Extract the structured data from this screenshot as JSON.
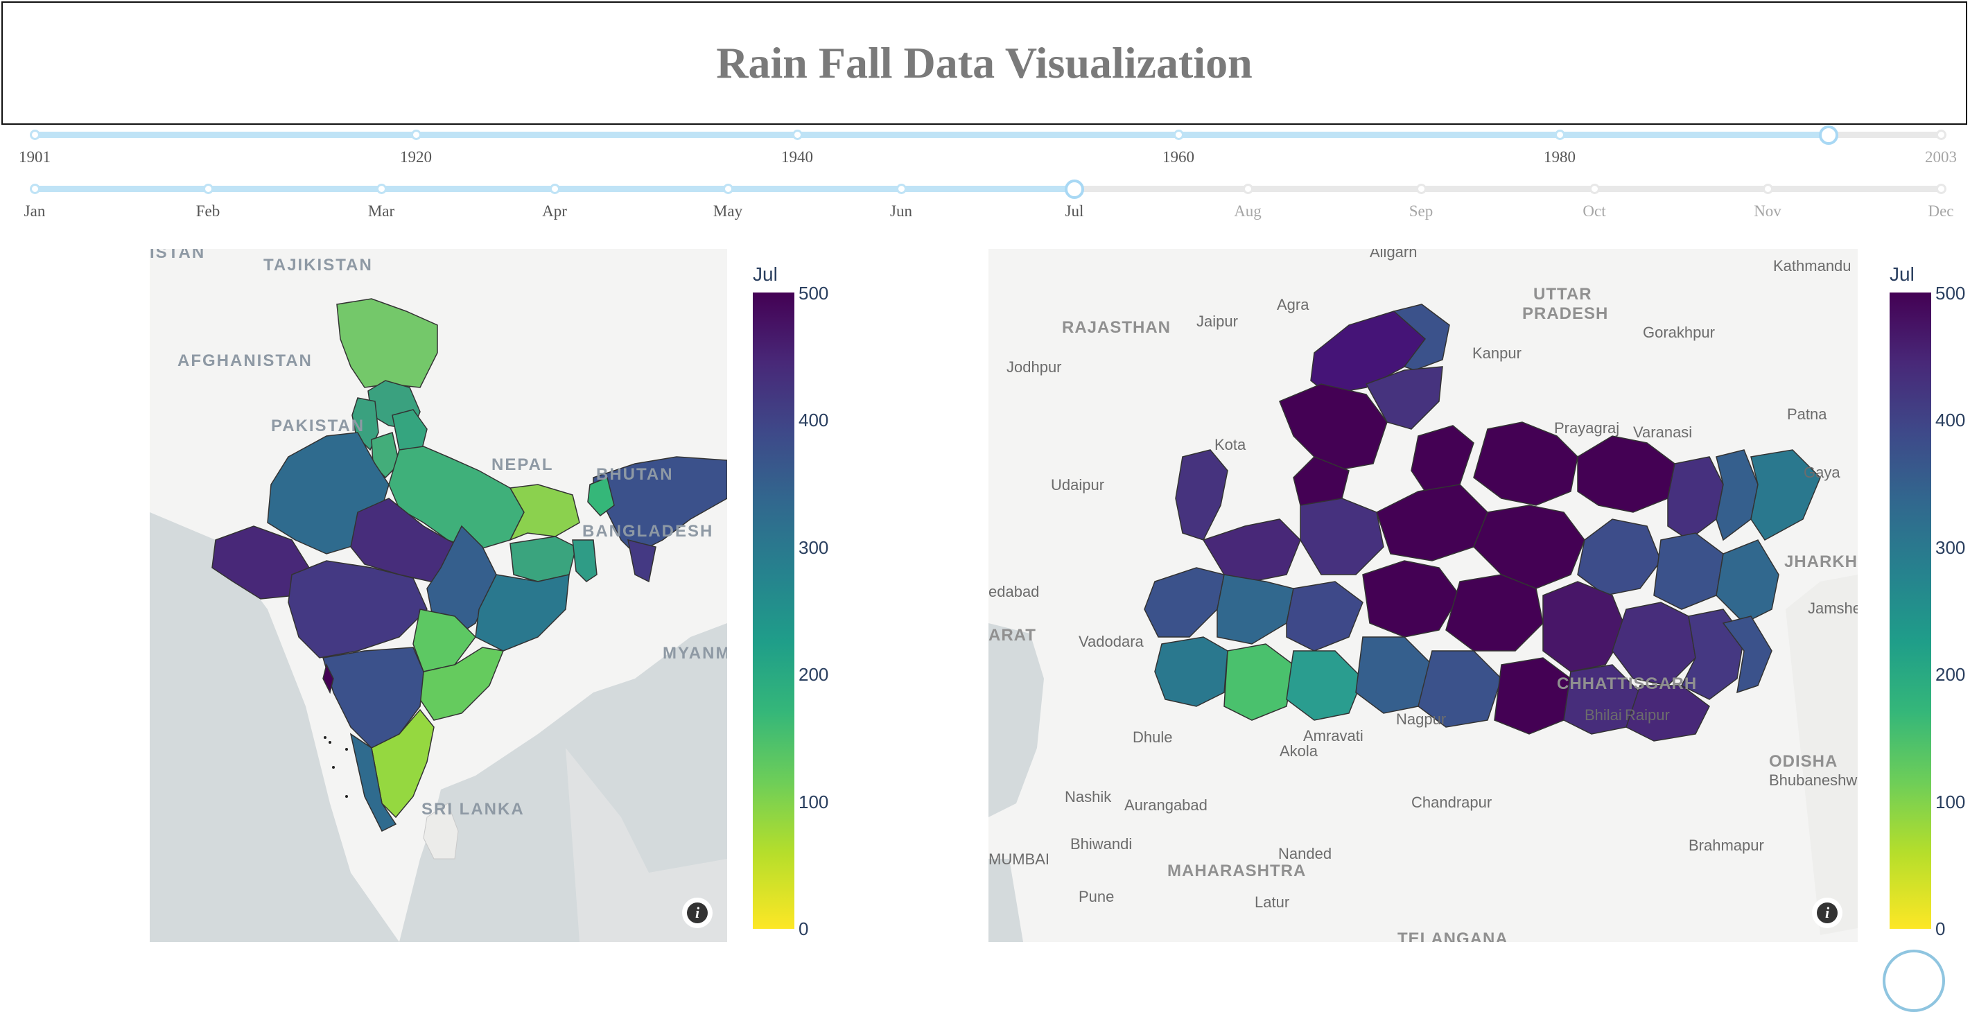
{
  "header": {
    "title": "Rain Fall Data Visualization"
  },
  "year_slider": {
    "labels": [
      "1901",
      "1920",
      "1940",
      "1960",
      "1980",
      "2003"
    ],
    "min": 1901,
    "max": 2003,
    "selected": 1997
  },
  "month_slider": {
    "labels": [
      "Jan",
      "Feb",
      "Mar",
      "Apr",
      "May",
      "Jun",
      "Jul",
      "Aug",
      "Sep",
      "Oct",
      "Nov",
      "Dec"
    ],
    "selected_index": 6
  },
  "colors": {
    "slider_accent": "#bfe3f6",
    "slider_rail": "#e8e8e8",
    "active_label": "#555555",
    "inactive_label": "#a6a6a6",
    "ocean": "#d4dadc",
    "land": "#f4f4f3"
  },
  "left_map": {
    "labels": {
      "c1": "ISTAN",
      "c2": "TAJIKISTAN",
      "c3": "AFGHANISTAN",
      "c4": "PAKISTAN",
      "c5": "NEPAL",
      "c6": "BHUTAN",
      "c7": "BANGLADESH",
      "c8": "MYANMAR",
      "c9": "SRI LANKA"
    },
    "colorbar": {
      "title": "Jul",
      "ticks": [
        "500",
        "400",
        "300",
        "200",
        "100",
        "0"
      ],
      "min": 0,
      "max": 500
    },
    "info_icon": "info-icon"
  },
  "right_map": {
    "cities": {
      "aligarh": "Aligarh",
      "agra": "Agra",
      "jaipur": "Jaipur",
      "jodhpur": "Jodhpur",
      "kanpur": "Kanpur",
      "gorakhpur": "Gorakhpur",
      "kathmandu": "Kathmandu",
      "patna": "Patna",
      "prayagraj": "Prayagraj",
      "varanasi": "Varanasi",
      "kota": "Kota",
      "udaipur": "Udaipur",
      "gaya": "Gaya",
      "ahmedabad": "edabad",
      "jamshedpur": "Jamshe",
      "vadodara": "Vadodara",
      "bhilai": "Bhilai",
      "raipur": "Raipur",
      "nagpur": "Nagpur",
      "amravati": "Amravati",
      "akola": "Akola",
      "dhule": "Dhule",
      "nashik": "Nashik",
      "aurangabad": "Aurangabad",
      "chandrapur": "Chandrapur",
      "bhubaneswar": "Bhubaneshw",
      "bhiwandi": "Bhiwandi",
      "mumbai": "MUMBAI",
      "nanded": "Nanded",
      "brahmapur": "Brahmapur",
      "pune": "Pune",
      "latur": "Latur"
    },
    "states": {
      "rajasthan": "RAJASTHAN",
      "uttar": "UTTAR",
      "pradesh": "PRADESH",
      "jharkhand": "JHARKH",
      "gujarat": "ARAT",
      "chhattisgarh": "CHHATTISGARH",
      "odisha": "ODISHA",
      "maharashtra": "MAHARASHTRA",
      "telangana": "TELANGANA"
    },
    "colorbar": {
      "title": "Jul",
      "ticks": [
        "500",
        "400",
        "300",
        "200",
        "100",
        "0"
      ],
      "min": 0,
      "max": 500
    },
    "info_icon": "info-icon"
  }
}
